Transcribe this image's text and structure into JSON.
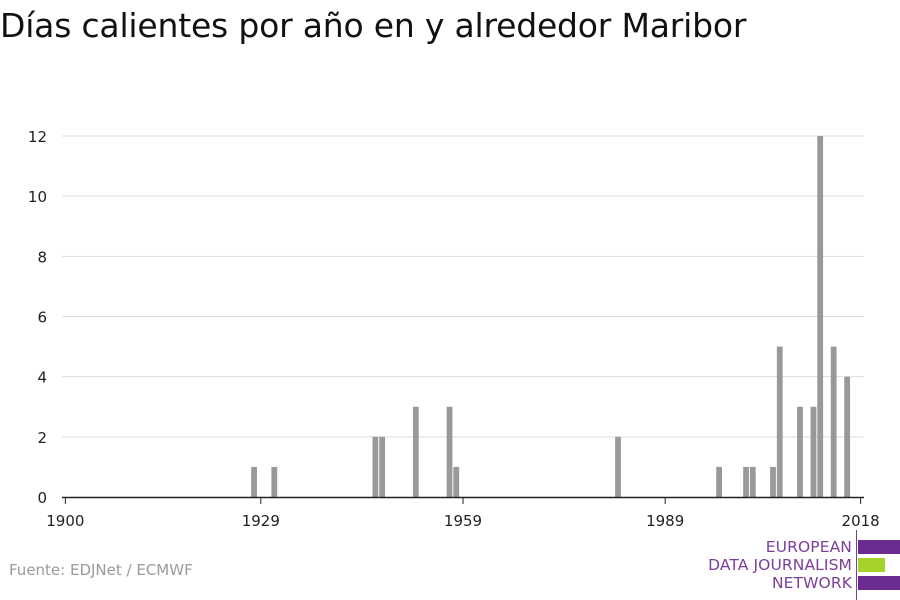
{
  "title": "Días calientes por año en y alrededor Maribor",
  "source": "Fuente: EDJNet / ECMWF",
  "logo": {
    "line1": "EUROPEAN",
    "line2": "DATA JOURNALISM",
    "line3": "NETWORK",
    "colors": {
      "purple": "#6b2c91",
      "green": "#a6d32a"
    }
  },
  "chart_data": {
    "type": "bar",
    "title": "Días calientes por año en y alrededor Maribor",
    "xlabel": "",
    "ylabel": "",
    "xlim": [
      1900,
      2018
    ],
    "ylim": [
      0,
      12
    ],
    "x_ticks": [
      1900,
      1929,
      1959,
      1989,
      2018
    ],
    "y_ticks": [
      0,
      2,
      4,
      6,
      8,
      10,
      12
    ],
    "grid": true,
    "bar_color": "#999999",
    "x": [
      1900,
      1901,
      1902,
      1903,
      1904,
      1905,
      1906,
      1907,
      1908,
      1909,
      1910,
      1911,
      1912,
      1913,
      1914,
      1915,
      1916,
      1917,
      1918,
      1919,
      1920,
      1921,
      1922,
      1923,
      1924,
      1925,
      1926,
      1927,
      1928,
      1929,
      1930,
      1931,
      1932,
      1933,
      1934,
      1935,
      1936,
      1937,
      1938,
      1939,
      1940,
      1941,
      1942,
      1943,
      1944,
      1945,
      1946,
      1947,
      1948,
      1949,
      1950,
      1951,
      1952,
      1953,
      1954,
      1955,
      1956,
      1957,
      1958,
      1959,
      1960,
      1961,
      1962,
      1963,
      1964,
      1965,
      1966,
      1967,
      1968,
      1969,
      1970,
      1971,
      1972,
      1973,
      1974,
      1975,
      1976,
      1977,
      1978,
      1979,
      1980,
      1981,
      1982,
      1983,
      1984,
      1985,
      1986,
      1987,
      1988,
      1989,
      1990,
      1991,
      1992,
      1993,
      1994,
      1995,
      1996,
      1997,
      1998,
      1999,
      2000,
      2001,
      2002,
      2003,
      2004,
      2005,
      2006,
      2007,
      2008,
      2009,
      2010,
      2011,
      2012,
      2013,
      2014,
      2015,
      2016,
      2017,
      2018
    ],
    "values": [
      0,
      0,
      0,
      0,
      0,
      0,
      0,
      0,
      0,
      0,
      0,
      0,
      0,
      0,
      0,
      0,
      0,
      0,
      0,
      0,
      0,
      0,
      0,
      0,
      0,
      0,
      0,
      0,
      1,
      0,
      0,
      1,
      0,
      0,
      0,
      0,
      0,
      0,
      0,
      0,
      0,
      0,
      0,
      0,
      0,
      0,
      2,
      2,
      0,
      0,
      0,
      0,
      3,
      0,
      0,
      0,
      0,
      3,
      1,
      0,
      0,
      0,
      0,
      0,
      0,
      0,
      0,
      0,
      0,
      0,
      0,
      0,
      0,
      0,
      0,
      0,
      0,
      0,
      0,
      0,
      0,
      0,
      2,
      0,
      0,
      0,
      0,
      0,
      0,
      0,
      0,
      0,
      0,
      0,
      0,
      0,
      0,
      1,
      0,
      0,
      0,
      1,
      1,
      0,
      0,
      1,
      5,
      0,
      0,
      3,
      0,
      3,
      12,
      0,
      5,
      0,
      4,
      0,
      0
    ]
  }
}
